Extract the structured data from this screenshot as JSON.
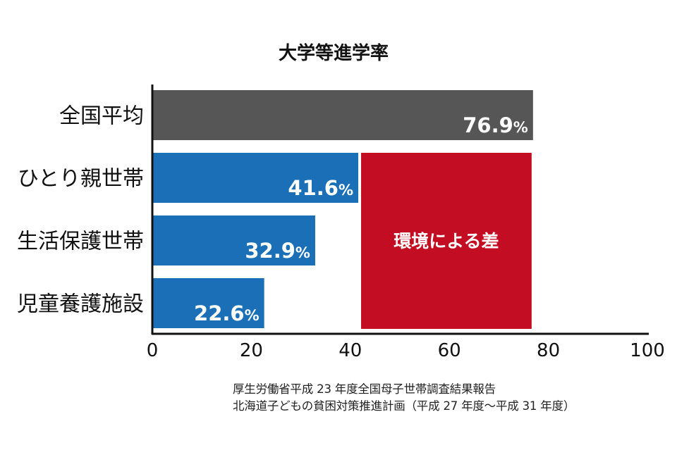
{
  "chart_data": {
    "type": "bar",
    "orientation": "horizontal",
    "title": "大学等進学率",
    "categories": [
      "全国平均",
      "ひとり親世帯",
      "生活保護世帯",
      "児童養護施設"
    ],
    "values": [
      76.9,
      41.6,
      32.9,
      22.6
    ],
    "value_labels": [
      "76.9",
      "41.6",
      "32.9",
      "22.6"
    ],
    "value_unit": "%",
    "bar_colors": [
      "#565656",
      "#1a6fb7",
      "#1a6fb7",
      "#1a6fb7"
    ],
    "xlim": [
      0,
      100
    ],
    "xticks": [
      0,
      20,
      40,
      60,
      80,
      100
    ],
    "xlabel": "",
    "ylabel": "",
    "grid": false,
    "annotation": {
      "text": "環境による差",
      "color": "#c30d23",
      "span_from": 41.6,
      "span_to": 76.9
    }
  },
  "sources": [
    "厚生労働省平成 23 年度全国母子世帯調査結果報告",
    "北海道子どもの貧困対策推進計画（平成 27 年度〜平成 31 年度）"
  ]
}
